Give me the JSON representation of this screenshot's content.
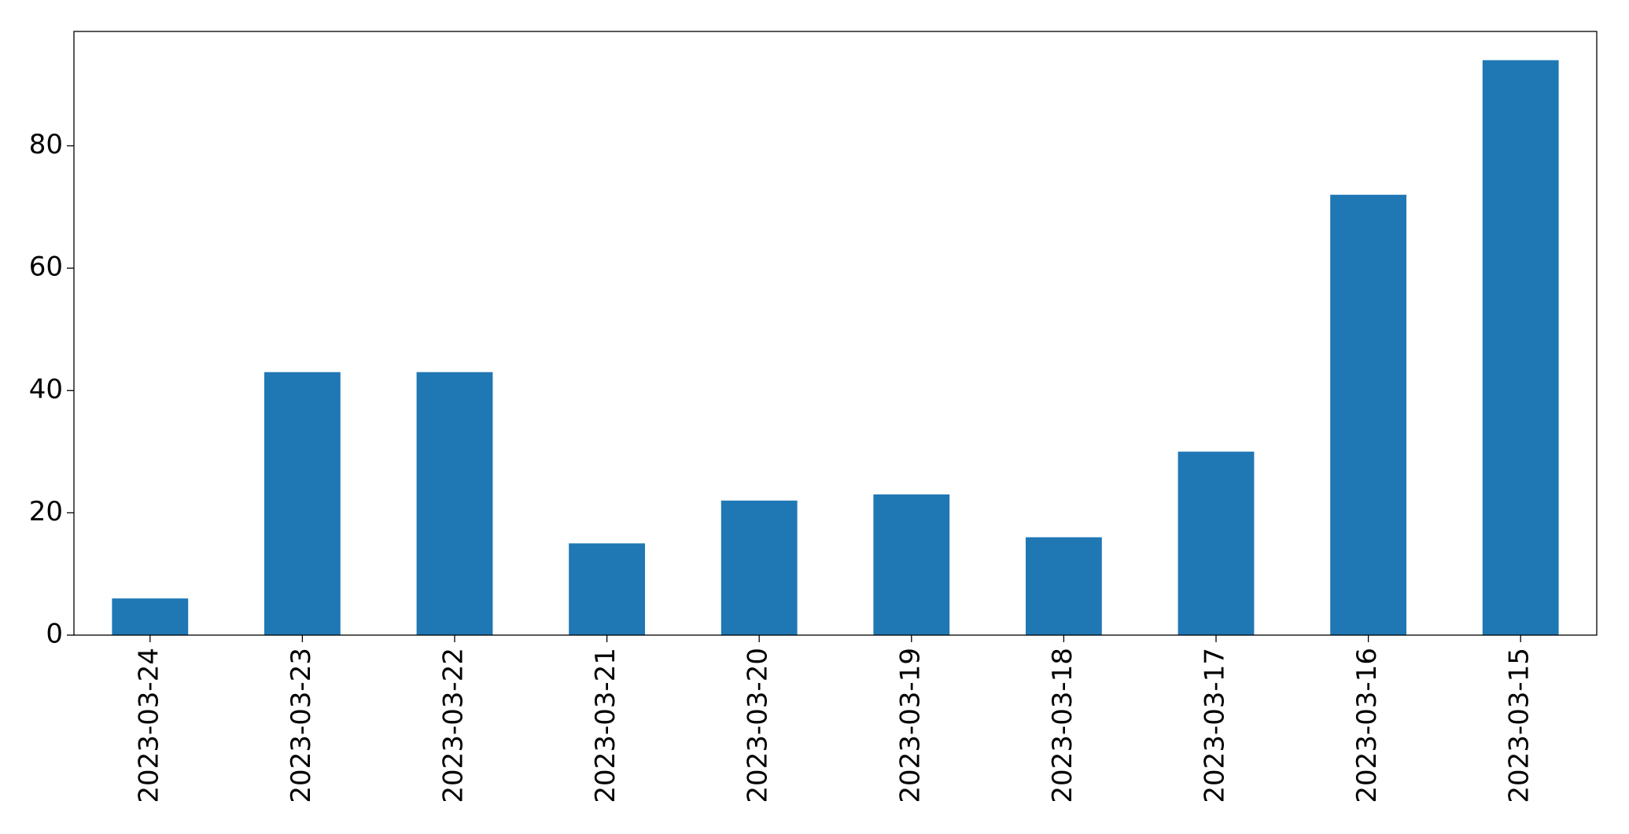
{
  "chart_data": {
    "type": "bar",
    "categories": [
      "2023-03-24",
      "2023-03-23",
      "2023-03-22",
      "2023-03-21",
      "2023-03-20",
      "2023-03-19",
      "2023-03-18",
      "2023-03-17",
      "2023-03-16",
      "2023-03-15"
    ],
    "values": [
      6,
      43,
      43,
      15,
      22,
      23,
      16,
      30,
      72,
      94
    ],
    "color": "#1f77b4",
    "ylim": [
      0,
      98.7
    ],
    "yticks": [
      0,
      20,
      40,
      60,
      80
    ],
    "grid": false
  }
}
